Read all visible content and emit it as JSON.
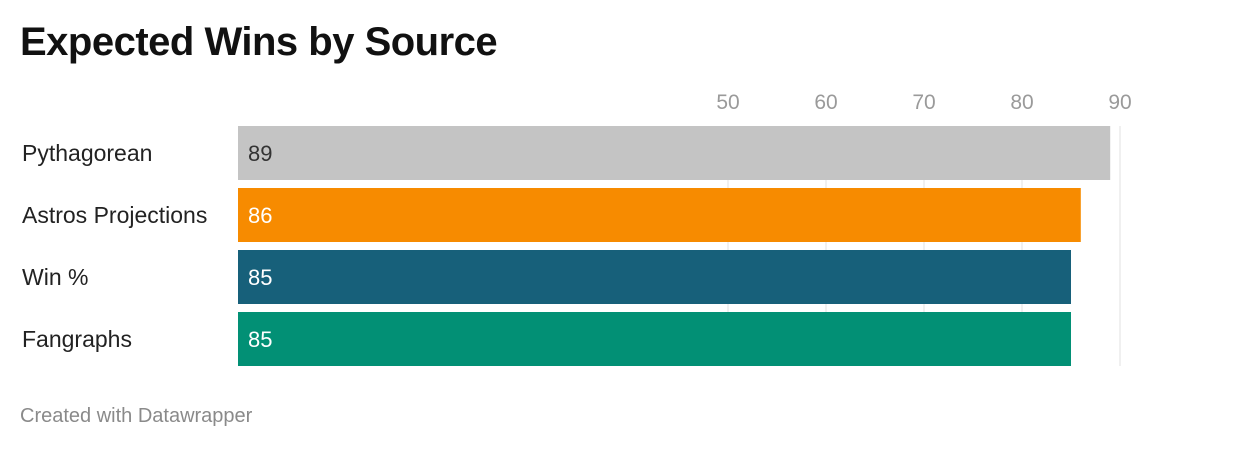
{
  "chart_data": {
    "type": "bar",
    "orientation": "horizontal",
    "title": "Expected Wins by Source",
    "categories": [
      "Pythagorean",
      "Astros Projections",
      "Win %",
      "Fangraphs"
    ],
    "values": [
      89,
      86,
      85,
      85
    ],
    "value_labels": [
      "89",
      "86",
      "85",
      "85"
    ],
    "colors": [
      "#c4c4c4",
      "#f78b00",
      "#17607a",
      "#029075"
    ],
    "label_colors": [
      "#333333",
      "#ffffff",
      "#ffffff",
      "#ffffff"
    ],
    "x_ticks": [
      50,
      60,
      70,
      80,
      90
    ],
    "tick_labels": [
      "50",
      "60",
      "70",
      "80",
      "90"
    ],
    "xlim": [
      0,
      90
    ],
    "grid": true,
    "xaxis_position": "top"
  },
  "footer": "Created with Datawrapper"
}
